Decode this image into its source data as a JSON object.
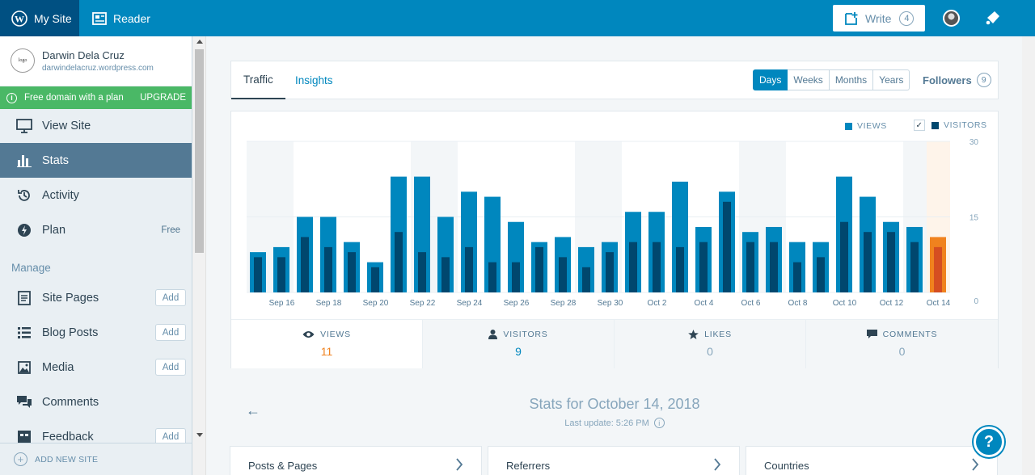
{
  "masterbar": {
    "my_site": "My Site",
    "reader": "Reader",
    "write": "Write",
    "write_count": "4"
  },
  "sidebar": {
    "site_name": "Darwin Dela Cruz",
    "site_url": "darwindelacruz.wordpress.com",
    "upgrade_text": "Free domain with a plan",
    "upgrade_label": "UPGRADE",
    "items": [
      {
        "label": "View Site",
        "icon": "monitor-icon"
      },
      {
        "label": "Stats",
        "icon": "bar-chart-icon",
        "active": true
      },
      {
        "label": "Activity",
        "icon": "history-icon"
      },
      {
        "label": "Plan",
        "icon": "plan-icon",
        "badge": "Free"
      }
    ],
    "manage_header": "Manage",
    "manage_items": [
      {
        "label": "Site Pages",
        "icon": "page-icon",
        "action": "Add"
      },
      {
        "label": "Blog Posts",
        "icon": "posts-icon",
        "action": "Add"
      },
      {
        "label": "Media",
        "icon": "image-icon",
        "action": "Add"
      },
      {
        "label": "Comments",
        "icon": "comments-icon"
      },
      {
        "label": "Feedback",
        "icon": "feedback-icon",
        "action": "Add"
      }
    ],
    "add_new_site": "ADD NEW SITE"
  },
  "nav": {
    "tabs": [
      "Traffic",
      "Insights"
    ],
    "periods": [
      "Days",
      "Weeks",
      "Months",
      "Years"
    ],
    "selected_period": "Days",
    "followers_label": "Followers",
    "followers_count": "9"
  },
  "chart_data": {
    "type": "bar",
    "legend": [
      "VIEWS",
      "VISITORS"
    ],
    "categories": [
      "Sep 15",
      "Sep 16",
      "Sep 17",
      "Sep 18",
      "Sep 19",
      "Sep 20",
      "Sep 21",
      "Sep 22",
      "Sep 23",
      "Sep 24",
      "Sep 25",
      "Sep 26",
      "Sep 27",
      "Sep 28",
      "Sep 29",
      "Sep 30",
      "Oct 1",
      "Oct 2",
      "Oct 3",
      "Oct 4",
      "Oct 5",
      "Oct 6",
      "Oct 7",
      "Oct 8",
      "Oct 9",
      "Oct 10",
      "Oct 11",
      "Oct 12",
      "Oct 13",
      "Oct 14"
    ],
    "x_tick_labels": [
      "Sep 16",
      "Sep 18",
      "Sep 20",
      "Sep 22",
      "Sep 24",
      "Sep 26",
      "Sep 28",
      "Sep 30",
      "Oct 2",
      "Oct 4",
      "Oct 6",
      "Oct 8",
      "Oct 10",
      "Oct 12",
      "Oct 14"
    ],
    "series": [
      {
        "name": "VIEWS",
        "values": [
          8,
          9,
          15,
          15,
          10,
          6,
          23,
          23,
          15,
          20,
          19,
          14,
          10,
          11,
          9,
          10,
          16,
          16,
          22,
          13,
          20,
          12,
          13,
          10,
          10,
          23,
          19,
          14,
          13,
          11
        ]
      },
      {
        "name": "VISITORS",
        "values": [
          7,
          7,
          11,
          9,
          8,
          5,
          12,
          8,
          7,
          9,
          6,
          6,
          9,
          7,
          5,
          8,
          10,
          10,
          9,
          10,
          18,
          10,
          10,
          6,
          7,
          14,
          12,
          12,
          10,
          9
        ]
      }
    ],
    "highlight_index": 29,
    "y_ticks": [
      "30",
      "15",
      "0"
    ],
    "ylim": [
      0,
      30
    ],
    "colors": {
      "views": "#0087be",
      "visitors": "#00476e",
      "highlight": "#f0821e",
      "highlight_dark": "#d54e21",
      "weekend": "#f3f6f8",
      "today": "#fef4ea"
    }
  },
  "stat_tabs": [
    {
      "label": "VIEWS",
      "value": "11",
      "icon": "eye-icon",
      "selected": true,
      "color": "#f0821e"
    },
    {
      "label": "VISITORS",
      "value": "9",
      "icon": "person-icon",
      "color": "#0087be"
    },
    {
      "label": "LIKES",
      "value": "0",
      "icon": "star-icon"
    },
    {
      "label": "COMMENTS",
      "value": "0",
      "icon": "comment-icon"
    }
  ],
  "stats_for": "Stats for October 14, 2018",
  "last_update": "Last update: 5:26 PM",
  "modules": [
    "Posts & Pages",
    "Referrers",
    "Countries"
  ],
  "help": "?"
}
